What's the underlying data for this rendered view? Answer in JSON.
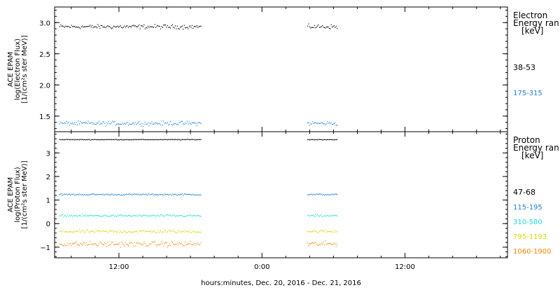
{
  "xaxis": {
    "label": "hours:minutes, Dec. 20, 2016 - Dec. 21, 2016",
    "range_hours": [
      6.6,
      44.6
    ],
    "ticks": [
      {
        "hours": 12,
        "label": "12:00"
      },
      {
        "hours": 24,
        "label": "0:00"
      },
      {
        "hours": 36,
        "label": "12:00"
      }
    ],
    "minor_ticks_hours": [
      8,
      10,
      14,
      16,
      18,
      20,
      22,
      26,
      28,
      30,
      32,
      34,
      38,
      40,
      42,
      44
    ]
  },
  "chart_data": [
    {
      "type": "scatter",
      "name": "electron",
      "ylabel": [
        "ACE EPAM",
        "log(Electron Flux)",
        "[1/(cm²s ster MeV)]"
      ],
      "ylim": [
        1.25,
        3.25
      ],
      "yticks": [
        1.5,
        2.0,
        2.5,
        3.0
      ],
      "ytick_labels": [
        "1.5",
        "2.0",
        "2.5",
        "3.0"
      ],
      "ytick_minor_step": 0.1,
      "legend": {
        "title": [
          "Electron",
          "Energy ran",
          "[keV]"
        ],
        "entries": [
          {
            "label": "38-53",
            "color": "#000000"
          },
          {
            "label": "175-315",
            "color": "#1f7fd6"
          }
        ]
      },
      "series": [
        {
          "label": "38-53",
          "color": "#000000",
          "mean": 2.94,
          "spread": 0.05,
          "segments": [
            [
              7.0,
              18.9
            ],
            [
              27.8,
              30.3
            ]
          ]
        },
        {
          "label": "175-315",
          "color": "#1f7fd6",
          "mean": 1.39,
          "spread": 0.05,
          "segments": [
            [
              7.0,
              18.9
            ],
            [
              27.8,
              30.3
            ]
          ]
        }
      ]
    },
    {
      "type": "scatter",
      "name": "proton",
      "ylabel": [
        "ACE EPAM",
        "log(Proton Flux)",
        "[1/(cm²s ster MeV)]"
      ],
      "ylim": [
        -1.45,
        3.9
      ],
      "yticks": [
        -1,
        0,
        1,
        2,
        3
      ],
      "ytick_labels": [
        "−1",
        "0",
        "1",
        "2",
        "3"
      ],
      "ytick_minor_step": 0.2,
      "legend": {
        "title": [
          "Proton",
          "Energy ran",
          "[keV]"
        ],
        "entries": [
          {
            "label": "47-68",
            "color": "#000000"
          },
          {
            "label": "115-195",
            "color": "#1f7fd6"
          },
          {
            "label": "310-580",
            "color": "#26d6d6"
          },
          {
            "label": "795-1193",
            "color": "#d6d600"
          },
          {
            "label": "1060-1900",
            "color": "#ee8800"
          }
        ]
      },
      "series": [
        {
          "label": "47-68",
          "color": "#000000",
          "mean": 3.58,
          "spread": 0.02,
          "segments": [
            [
              7.0,
              18.9
            ],
            [
              27.8,
              30.3
            ]
          ]
        },
        {
          "label": "115-195",
          "color": "#1f7fd6",
          "mean": 1.25,
          "spread": 0.05,
          "segments": [
            [
              7.0,
              18.9
            ],
            [
              27.8,
              30.3
            ]
          ]
        },
        {
          "label": "310-580",
          "color": "#26d6d6",
          "mean": 0.35,
          "spread": 0.07,
          "segments": [
            [
              7.0,
              18.9
            ],
            [
              27.8,
              30.3
            ]
          ]
        },
        {
          "label": "795-1193",
          "color": "#d6d600",
          "mean": -0.32,
          "spread": 0.1,
          "segments": [
            [
              7.0,
              18.9
            ],
            [
              27.8,
              30.3
            ]
          ]
        },
        {
          "label": "1060-1900",
          "color": "#ee8800",
          "mean": -0.85,
          "spread": 0.16,
          "segments": [
            [
              7.0,
              18.9
            ],
            [
              27.8,
              30.3
            ]
          ]
        }
      ]
    }
  ]
}
